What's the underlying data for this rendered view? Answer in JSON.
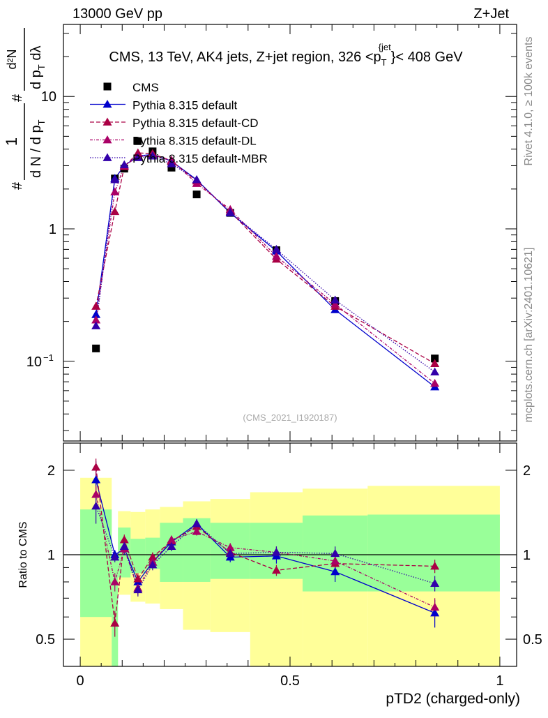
{
  "header": {
    "energy_label": "13000 GeV pp",
    "process_label": "Z+Jet",
    "rivet_label": "Rivet 4.1.0, ≥ 100k events",
    "site_label": "mcplots.cern.ch [arXiv:2401.10621]",
    "analysis_id": "(CMS_2021_I1920187)"
  },
  "colors": {
    "cms": "#000000",
    "default": "#0000cc",
    "cd": "#aa0044",
    "dl": "#aa0066",
    "mbr": "#3300aa",
    "band_inner": "#99ff99",
    "band_outer": "#ffff99"
  },
  "chart_data": [
    {
      "type": "scatter",
      "title": "CMS, 13 TeV, AK4 jets, Z+jet region, 326 <p_T^{jet}< 408 GeV",
      "title_parts": {
        "main": "CMS, 13 TeV, AK4 jets, Z+jet region, 326 <p",
        "sub": "T",
        "sup": "{jet",
        "end": "}< 408 GeV"
      },
      "ylabel_parts": {
        "frac1_num": "1",
        "frac1_den": "d N / d p",
        "frac1_sub": "T",
        "frac2_num": "d²N",
        "frac2_den": "d p",
        "frac2_den_sub": "T",
        "frac2_den_end": " dλ",
        "hash": "#"
      },
      "yscale": "log",
      "ylim": [
        0.025,
        35
      ],
      "xlim": [
        -0.04,
        1.04
      ],
      "y_ticks": [
        {
          "value": 0.1,
          "label": "10",
          "exp": "−1"
        },
        {
          "value": 1,
          "label": "1",
          "exp": ""
        },
        {
          "value": 10,
          "label": "10",
          "exp": ""
        }
      ],
      "x": [
        0.0375,
        0.0825,
        0.105,
        0.1375,
        0.1725,
        0.2175,
        0.2775,
        0.3575,
        0.4675,
        0.6075,
        0.845
      ],
      "series": [
        {
          "name": "CMS",
          "key": "cms",
          "marker": "square",
          "dash": "none",
          "values": [
            0.125,
            2.4,
            2.85,
            4.6,
            3.85,
            2.9,
            1.82,
            1.32,
            0.69,
            0.285,
            0.105
          ]
        },
        {
          "name": "Pythia 8.315 default",
          "key": "default",
          "marker": "triangle",
          "dash": "solid",
          "values": [
            0.225,
            2.4,
            3.0,
            3.55,
            3.65,
            3.25,
            2.35,
            1.32,
            0.68,
            0.245,
            0.064
          ]
        },
        {
          "name": "Pythia 8.315 default-CD",
          "key": "cd",
          "marker": "triangle",
          "dash": "6,3",
          "values": [
            0.26,
            1.35,
            2.95,
            3.75,
            3.7,
            3.25,
            2.3,
            1.35,
            0.59,
            0.26,
            0.096
          ]
        },
        {
          "name": "Pythia 8.315 default-DL",
          "key": "dl",
          "marker": "triangle",
          "dash": "4,2,1,2",
          "values": [
            0.205,
            1.9,
            3.0,
            3.5,
            3.6,
            3.3,
            2.2,
            1.4,
            0.62,
            0.27,
            0.068
          ]
        },
        {
          "name": "Pythia 8.315 default-MBR",
          "key": "mbr",
          "marker": "triangle",
          "dash": "1.5,2",
          "values": [
            0.185,
            2.35,
            3.05,
            3.45,
            3.55,
            3.1,
            2.35,
            1.33,
            0.7,
            0.29,
            0.083
          ]
        }
      ]
    },
    {
      "type": "scatter",
      "title": "",
      "xlabel": "pTD2 (charged-only)",
      "ylabel": "Ratio to CMS",
      "yscale": "log",
      "ylim": [
        0.4,
        2.5
      ],
      "xlim": [
        -0.04,
        1.04
      ],
      "x_ticks": [
        {
          "value": 0,
          "label": "0"
        },
        {
          "value": 0.5,
          "label": "0.5"
        },
        {
          "value": 1,
          "label": "1"
        }
      ],
      "y_ticks": [
        {
          "value": 0.5,
          "label": "0.5"
        },
        {
          "value": 1,
          "label": "1"
        },
        {
          "value": 2,
          "label": "2"
        }
      ],
      "bin_edges": [
        0,
        0.075,
        0.09,
        0.12,
        0.155,
        0.19,
        0.245,
        0.31,
        0.405,
        0.53,
        0.685,
        1.0
      ],
      "band_inner": [
        [
          0.6,
          1.45
        ],
        [
          0.0,
          1.0
        ],
        [
          0.83,
          1.25
        ],
        [
          0.86,
          1.14
        ],
        [
          0.89,
          1.15
        ],
        [
          0.8,
          1.3
        ],
        [
          0.8,
          1.35
        ],
        [
          0.82,
          1.3
        ],
        [
          0.82,
          1.3
        ],
        [
          0.74,
          1.38
        ],
        [
          0.74,
          1.39
        ]
      ],
      "band_outer": [
        [
          0.0,
          1.88
        ],
        [
          0.0,
          1.0
        ],
        [
          0.72,
          1.43
        ],
        [
          0.68,
          1.42
        ],
        [
          0.67,
          1.45
        ],
        [
          0.64,
          1.48
        ],
        [
          0.54,
          1.55
        ],
        [
          0.53,
          1.58
        ],
        [
          0.37,
          1.67
        ],
        [
          0.37,
          1.72
        ],
        [
          0.37,
          1.76
        ]
      ],
      "series": [
        {
          "name": "Pythia 8.315 default",
          "key": "default",
          "dash": "solid",
          "values": [
            1.85,
            1.0,
            1.05,
            0.8,
            0.94,
            1.11,
            1.29,
            0.98,
            0.99,
            0.87,
            0.62
          ],
          "errors": [
            0.3,
            0.04,
            0.05,
            0.04,
            0.04,
            0.04,
            0.05,
            0.04,
            0.06,
            0.07,
            0.07
          ]
        },
        {
          "name": "Pythia 8.315 default-CD",
          "key": "cd",
          "dash": "6,3",
          "values": [
            2.05,
            0.57,
            1.13,
            0.82,
            0.98,
            1.12,
            1.26,
            1.02,
            0.88,
            0.93,
            0.91
          ],
          "errors": [
            0.15,
            0.06,
            0.05,
            0.04,
            0.04,
            0.04,
            0.05,
            0.04,
            0.04,
            0.05,
            0.05
          ]
        },
        {
          "name": "Pythia 8.315 default-DL",
          "key": "dl",
          "dash": "4,2,1,2",
          "values": [
            1.64,
            0.8,
            1.05,
            0.76,
            0.94,
            1.13,
            1.21,
            1.06,
            1.02,
            0.95,
            0.65
          ],
          "errors": [
            0.12,
            0.06,
            0.04,
            0.04,
            0.04,
            0.04,
            0.04,
            0.04,
            0.05,
            0.05,
            0.05
          ]
        },
        {
          "name": "Pythia 8.315 default-MBR",
          "key": "mbr",
          "dash": "1.5,2",
          "values": [
            1.49,
            0.98,
            1.07,
            0.75,
            0.92,
            1.07,
            1.29,
            1.01,
            1.02,
            1.01,
            0.79
          ],
          "errors": [
            0.2,
            0.04,
            0.04,
            0.04,
            0.04,
            0.04,
            0.05,
            0.04,
            0.05,
            0.06,
            0.05
          ]
        }
      ]
    }
  ]
}
